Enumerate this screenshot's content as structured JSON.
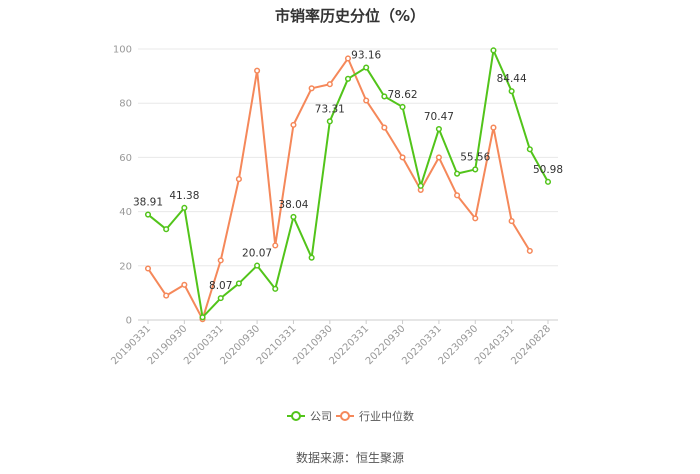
{
  "chart_data": {
    "type": "line",
    "title": "市销率历史分位（%）",
    "source": "数据来源：恒生聚源",
    "ylim": [
      0,
      100
    ],
    "yticks": [
      0,
      20,
      40,
      60,
      80,
      100
    ],
    "grid": true,
    "legend_position": "bottom",
    "x": [
      "20190331",
      "",
      "20190930",
      "",
      "20200331",
      "",
      "20200930",
      "",
      "20210331",
      "",
      "20210930",
      "",
      "20220331",
      "",
      "20220930",
      "",
      "20230331",
      "",
      "20230930",
      "",
      "20240331",
      "",
      "20240828"
    ],
    "x_tick_labels": [
      "20190331",
      "20190930",
      "20200331",
      "20200930",
      "20210331",
      "20210930",
      "20220331",
      "20220930",
      "20230331",
      "20230930",
      "20240331",
      "20240828"
    ],
    "series": [
      {
        "name": "公司",
        "color": "#52c41a",
        "values": [
          38.91,
          33.5,
          41.38,
          1.0,
          8.07,
          13.5,
          20.07,
          11.5,
          38.04,
          23.0,
          73.31,
          89.0,
          93.16,
          82.5,
          78.62,
          49.5,
          70.47,
          54.0,
          55.56,
          99.5,
          84.44,
          63.0,
          50.98
        ],
        "labels": [
          "38.91",
          "",
          "41.38",
          "",
          "8.07",
          "",
          "20.07",
          "",
          "38.04",
          "",
          "73.31",
          "",
          "93.16",
          "",
          "78.62",
          "",
          "70.47",
          "",
          "55.56",
          "",
          "84.44",
          "",
          "50.98"
        ]
      },
      {
        "name": "行业中位数",
        "color": "#f5885a",
        "values": [
          19.0,
          9.0,
          13.0,
          0.3,
          22.0,
          52.0,
          92.0,
          27.5,
          72.0,
          85.5,
          87.0,
          96.5,
          81.0,
          71.0,
          60.0,
          48.0,
          60.0,
          46.0,
          37.5,
          71.0,
          36.5,
          25.5,
          null
        ]
      }
    ]
  }
}
